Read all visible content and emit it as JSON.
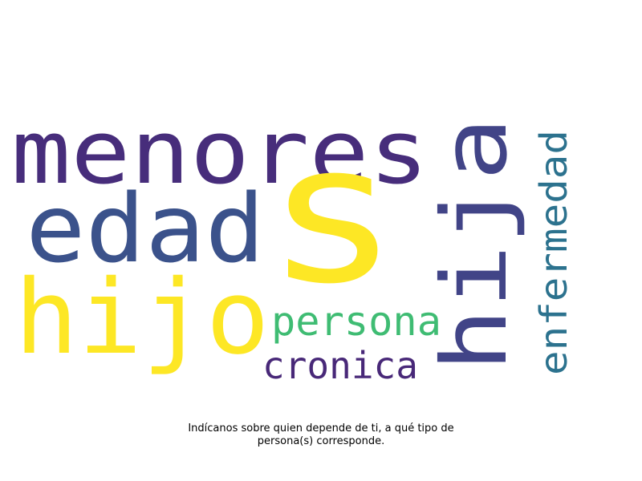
{
  "wordcloud": {
    "words": [
      {
        "id": "menores",
        "text": "menores",
        "color": "#472d7b"
      },
      {
        "id": "edad",
        "text": "edad",
        "color": "#3b528b"
      },
      {
        "id": "s",
        "text": "s",
        "color": "#fde725"
      },
      {
        "id": "hijo",
        "text": "hijo",
        "color": "#fde725"
      },
      {
        "id": "hija",
        "text": "hija",
        "color": "#414487"
      },
      {
        "id": "persona",
        "text": "persona",
        "color": "#3fbc73"
      },
      {
        "id": "cronica",
        "text": "cronica",
        "color": "#482878"
      },
      {
        "id": "enfermedad",
        "text": "enfermedad",
        "color": "#2c728e"
      }
    ]
  },
  "caption": {
    "line1": "Indícanos sobre quien depende de ti, a qué tipo de",
    "line2": "persona(s) corresponde."
  }
}
